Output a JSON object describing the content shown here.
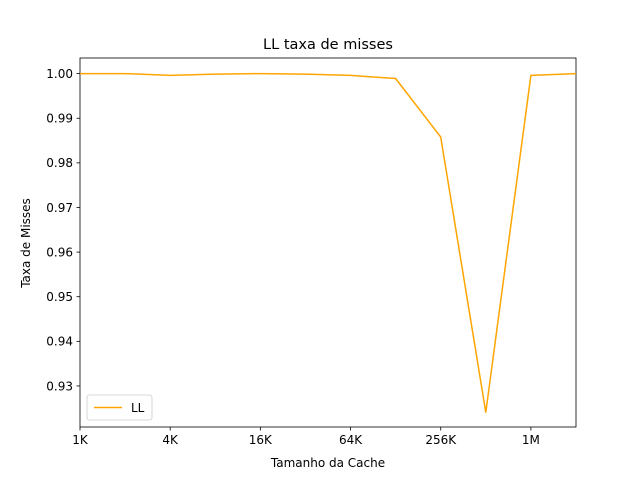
{
  "chart_data": {
    "type": "line",
    "title": "LL taxa de misses",
    "xlabel": "Tamanho da Cache",
    "ylabel": "Taxa de Misses",
    "x_scale": "log2",
    "xlim": [
      1,
      1024
    ],
    "xlim_max_visible": 2048,
    "ylim": [
      0.9208,
      1.0035
    ],
    "x_tick_values": [
      1,
      4,
      16,
      64,
      256,
      1024
    ],
    "x_tick_labels": [
      "1K",
      "4K",
      "16K",
      "64K",
      "256K",
      "1M"
    ],
    "y_ticks": [
      0.93,
      0.94,
      0.95,
      0.96,
      0.97,
      0.98,
      0.99,
      1.0
    ],
    "y_tick_labels": [
      "0.93",
      "0.94",
      "0.95",
      "0.96",
      "0.97",
      "0.98",
      "0.99",
      "1.00"
    ],
    "grid": false,
    "legend_position": "lower-left",
    "series": [
      {
        "name": "LL",
        "color": "#ffa500",
        "x": [
          1,
          2,
          4,
          8,
          16,
          32,
          64,
          128,
          256,
          512,
          1024,
          2048
        ],
        "y": [
          1.0,
          1.0,
          0.9996,
          0.9999,
          1.0,
          0.9999,
          0.9996,
          0.9989,
          0.9858,
          0.9241,
          0.9996,
          1.0
        ]
      }
    ]
  }
}
